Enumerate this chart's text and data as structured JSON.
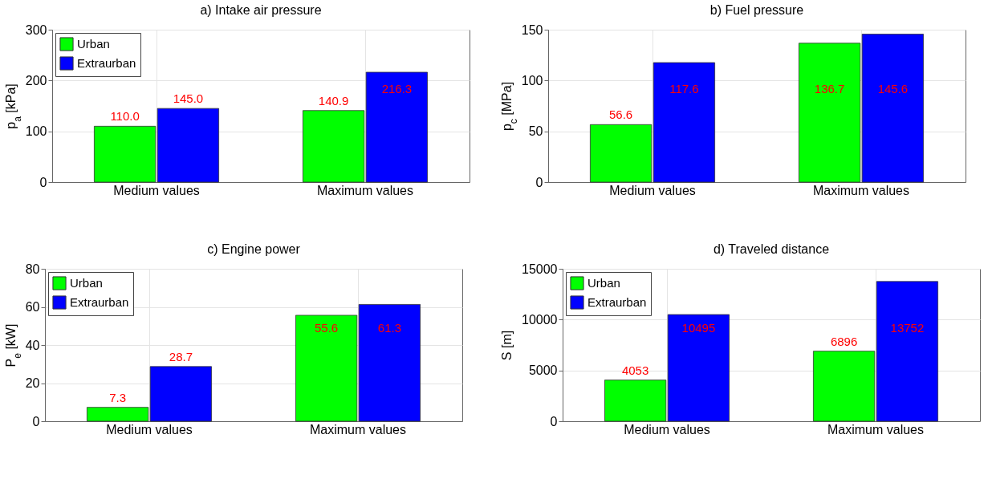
{
  "chart_data": [
    {
      "type": "bar",
      "title": "a) Intake air pressure",
      "ylabel": "p$_{a}$ [kPa]",
      "categories": [
        "Medium values",
        "Maximum values"
      ],
      "series": [
        {
          "name": "Urban",
          "color": "#00ff00",
          "values": [
            110.0,
            140.9
          ],
          "value_labels": [
            "110.0",
            "140.9"
          ]
        },
        {
          "name": "Extraurban",
          "color": "#0000ff",
          "values": [
            145.0,
            216.3
          ],
          "value_labels": [
            "145.0",
            "216.3"
          ]
        }
      ],
      "ylim": [
        0,
        300
      ],
      "yticks": [
        0,
        100,
        200,
        300
      ],
      "grid": true,
      "legend": "top left"
    },
    {
      "type": "bar",
      "title": "b) Fuel pressure",
      "ylabel": "p$_{c}$ [MPa]",
      "categories": [
        "Medium values",
        "Maximum values"
      ],
      "series": [
        {
          "color": "#00ff00",
          "values": [
            56.6,
            136.7
          ],
          "value_labels": [
            "56.6",
            "136.7"
          ]
        },
        {
          "color": "#0000ff",
          "values": [
            117.6,
            145.6
          ],
          "value_labels": [
            "117.6",
            "145.6"
          ]
        }
      ],
      "ylim": [
        0,
        150
      ],
      "yticks": [
        0,
        50,
        100,
        150
      ],
      "grid": true
    },
    {
      "type": "bar",
      "title": "c) Engine power",
      "ylabel": "P$_{e}$ [kW]",
      "categories": [
        "Medium values",
        "Maximum values"
      ],
      "series": [
        {
          "name": "Urban",
          "color": "#00ff00",
          "values": [
            7.3,
            55.6
          ],
          "value_labels": [
            "7.3",
            "55.6"
          ]
        },
        {
          "name": "Extraurban",
          "color": "#0000ff",
          "values": [
            28.7,
            61.3
          ],
          "value_labels": [
            "28.7",
            "61.3"
          ]
        }
      ],
      "ylim": [
        0,
        80
      ],
      "yticks": [
        0,
        20,
        40,
        60,
        80
      ],
      "grid": true,
      "legend": "top left"
    },
    {
      "type": "bar",
      "title": "d) Traveled distance",
      "ylabel": "S [m]",
      "categories": [
        "Medium values",
        "Maximum values"
      ],
      "series": [
        {
          "name": "Urban",
          "color": "#00ff00",
          "values": [
            4053,
            6896
          ],
          "value_labels": [
            "4053",
            "6896"
          ]
        },
        {
          "name": "Extraurban",
          "color": "#0000ff",
          "values": [
            10495,
            13752
          ],
          "value_labels": [
            "10495",
            "13752"
          ]
        }
      ],
      "ylim": [
        0,
        15000
      ],
      "yticks": [
        0,
        5000,
        10000,
        15000
      ],
      "grid": true,
      "legend": "top left"
    }
  ]
}
